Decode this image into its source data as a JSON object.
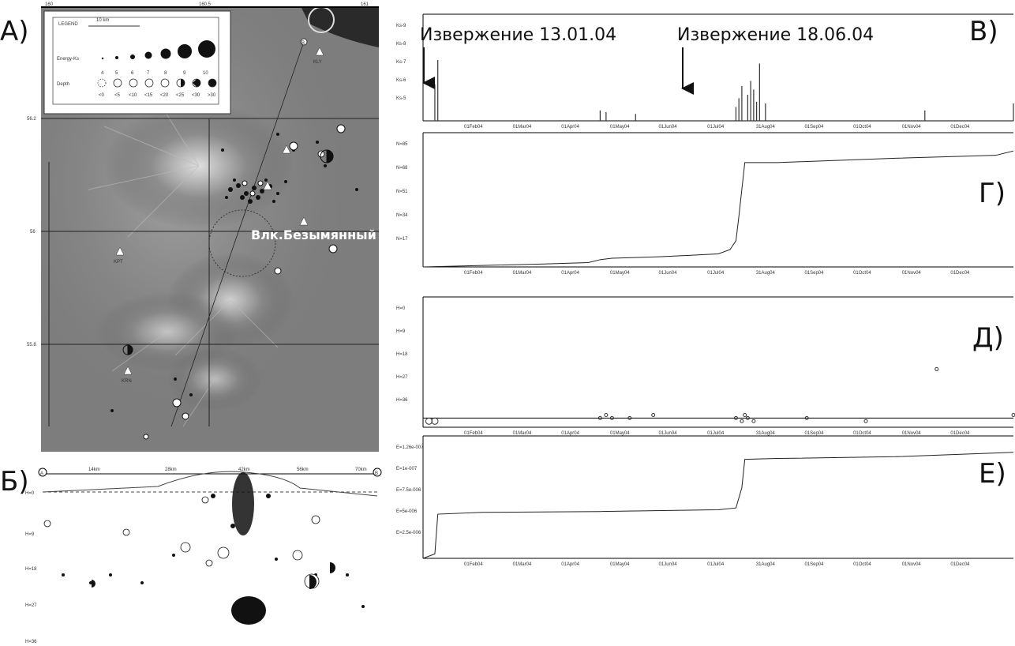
{
  "panel_labels": {
    "a": "А)",
    "b": "Б)",
    "v": "В)",
    "g": "Г)",
    "d": "Д)",
    "e": "Е)"
  },
  "map": {
    "volcano_label": "Влк.Безымянный",
    "legend": {
      "title": "LEGEND",
      "scale": "10 km",
      "energy_label": "Energy-Ks",
      "energy_classes": [
        "4",
        "5",
        "6",
        "7",
        "8",
        "9",
        "10"
      ],
      "depth_label": "Depth",
      "depth_classes": [
        "<0",
        "<5",
        "<10",
        "<15",
        "<20",
        "<25",
        "<30",
        ">30"
      ]
    },
    "top_ticks": [
      "160",
      "160.5",
      "161"
    ],
    "left_ticks": [
      "56.2",
      "56",
      "55.8"
    ],
    "stations": [
      "KLY",
      "KPT",
      "KRN"
    ],
    "section_ends": [
      "A",
      "B"
    ]
  },
  "annotations": {
    "eruption1": "Извержение 13.01.04",
    "eruption2": "Извержение 18.06.04"
  },
  "months": [
    "01Feb04",
    "01Mar04",
    "01Apr04",
    "01May04",
    "01Jun04",
    "01Jul04",
    "31Aug04",
    "01Sep04",
    "01Oct04",
    "01Nov04",
    "01Dec04"
  ],
  "chart_data": [
    {
      "id": "V",
      "type": "bar",
      "ylabel_ticks": [
        "Ks-9",
        "Ks-8",
        "Ks-7",
        "Ks-6",
        "Ks-5"
      ],
      "ylim": [
        4,
        9.5
      ],
      "x": [
        0.02,
        0.025,
        0.3,
        0.31,
        0.36,
        0.53,
        0.535,
        0.54,
        0.55,
        0.555,
        0.56,
        0.565,
        0.57,
        0.58,
        0.85,
        1.0
      ],
      "values": [
        6.1,
        7.5,
        4.6,
        4.5,
        4.4,
        4.8,
        5.3,
        6.0,
        5.5,
        6.3,
        5.8,
        5.1,
        7.3,
        5.0,
        4.6,
        5.0
      ]
    },
    {
      "id": "G",
      "type": "line",
      "ylabel_ticks": [
        "N=85",
        "N=68",
        "N=51",
        "N=34",
        "N=17"
      ],
      "ylim": [
        0,
        85
      ],
      "x": [
        0,
        0.1,
        0.2,
        0.28,
        0.3,
        0.32,
        0.4,
        0.45,
        0.5,
        0.52,
        0.53,
        0.535,
        0.545,
        0.6,
        0.8,
        0.97,
        1.0
      ],
      "values": [
        0,
        1,
        2,
        3,
        5,
        6,
        7,
        8,
        9,
        12,
        18,
        35,
        72,
        72,
        75,
        77,
        80
      ]
    },
    {
      "id": "D",
      "type": "scatter",
      "ylabel_ticks": [
        "H=0",
        "H=9",
        "H=18",
        "H=27",
        "H=36"
      ],
      "ylim": [
        -3,
        36
      ],
      "x": [
        0.01,
        0.02,
        0.3,
        0.31,
        0.32,
        0.35,
        0.39,
        0.53,
        0.54,
        0.545,
        0.55,
        0.56,
        0.65,
        0.75,
        0.87,
        1.0
      ],
      "values": [
        -1,
        -1,
        0,
        1,
        0,
        0,
        1,
        0,
        -1,
        1,
        0,
        -1,
        0,
        -1,
        16,
        1
      ]
    },
    {
      "id": "E",
      "type": "line",
      "ylabel_ticks": [
        "E=1.26e-007",
        "E=1e-007",
        "E=7.5e-006",
        "E=5e-006",
        "E=2.5e-006"
      ],
      "ylim": [
        0,
        1.26
      ],
      "x": [
        0,
        0.02,
        0.025,
        0.1,
        0.3,
        0.5,
        0.53,
        0.54,
        0.545,
        0.6,
        0.8,
        1.0
      ],
      "values": [
        0,
        0.05,
        0.5,
        0.52,
        0.53,
        0.55,
        0.57,
        0.8,
        1.12,
        1.13,
        1.15,
        1.2
      ]
    }
  ],
  "section": {
    "x_ticks": [
      "14km",
      "28km",
      "42km",
      "56km",
      "70km"
    ],
    "y_ticks": [
      "H=0",
      "H=9",
      "H=18",
      "H=27",
      "H=36"
    ],
    "ends": [
      "A",
      "B"
    ]
  },
  "colors": {
    "bg": "#ffffff",
    "ink": "#111111",
    "map_dark": "#4a4a4a",
    "map_light": "#d8d8d8"
  }
}
